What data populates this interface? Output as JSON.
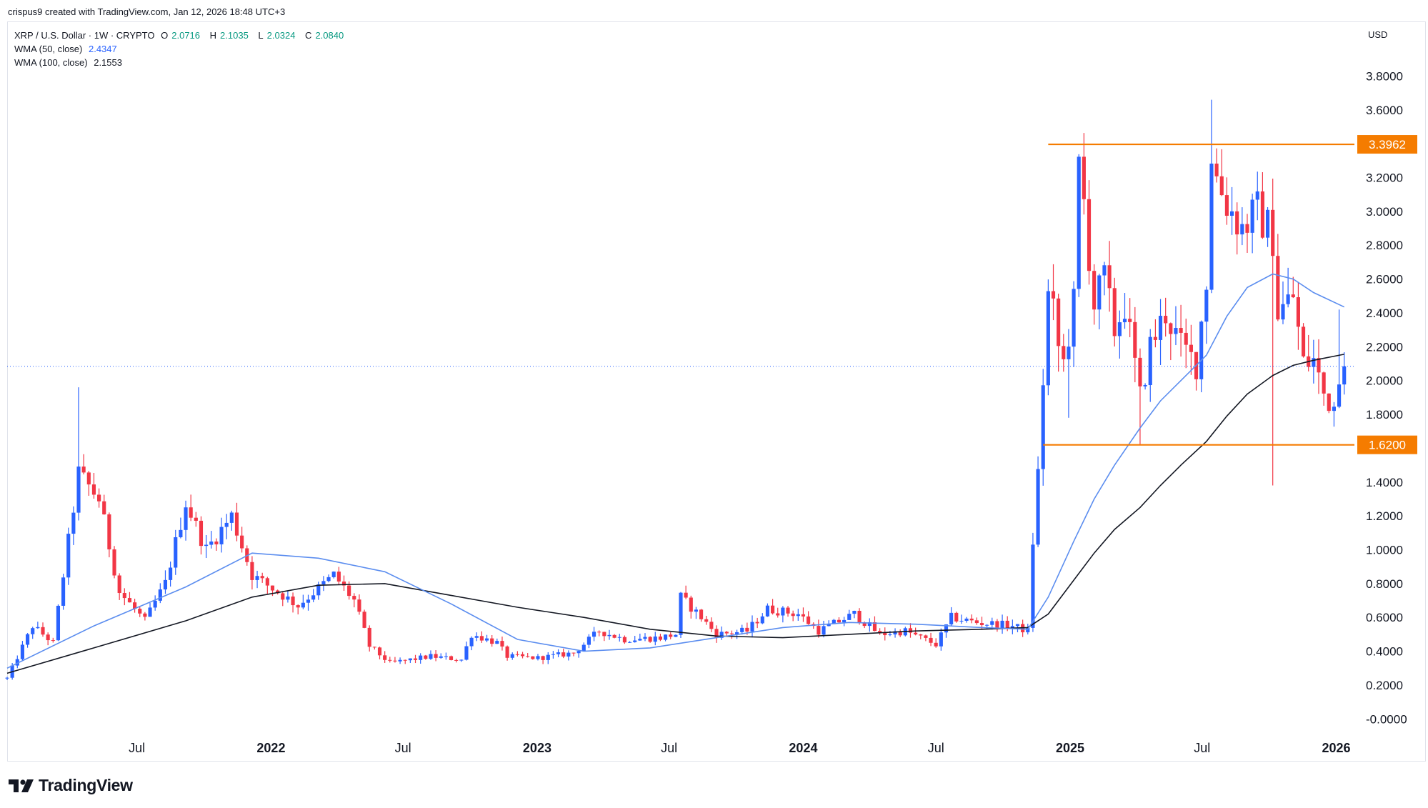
{
  "credit": "crispus9 created with TradingView.com, Jan 12, 2026 18:48 UTC+3",
  "legend": {
    "symbol": "XRP / U.S. Dollar · 1W · CRYPTO",
    "open_label": "O",
    "open": "2.0716",
    "high_label": "H",
    "high": "2.1035",
    "low_label": "L",
    "low": "2.0324",
    "close_label": "C",
    "close": "2.0840",
    "wma50_label": "WMA (50, close)",
    "wma50_value": "2.4347",
    "wma100_label": "WMA (100, close)",
    "wma100_value": "2.1553"
  },
  "brand": {
    "logo_icon": "tradingview-logo-icon",
    "name": "TradingView"
  },
  "colors": {
    "up": "#2962ff",
    "down": "#f23645",
    "wma50": "#5b8def",
    "wma100": "#131722",
    "level": "#f57c00",
    "level_label_bg": "#f57c00",
    "last_price_line": "#2962ff"
  },
  "chart_data": {
    "type": "candlestick",
    "currency_label": "USD",
    "ylim": [
      -0.1,
      3.92
    ],
    "y_ticks": [
      "3.8000",
      "3.6000",
      "3.2000",
      "3.0000",
      "2.8000",
      "2.6000",
      "2.4000",
      "2.2000",
      "2.0000",
      "1.8000",
      "1.4000",
      "1.2000",
      "1.0000",
      "0.8000",
      "0.6000",
      "0.4000",
      "0.2000",
      "-0.0000"
    ],
    "x_ticks": [
      {
        "label": "Jul",
        "date": "2021-07-01",
        "bold": false
      },
      {
        "label": "2022",
        "date": "2022-01-01",
        "bold": true
      },
      {
        "label": "Jul",
        "date": "2022-07-01",
        "bold": false
      },
      {
        "label": "2023",
        "date": "2023-01-01",
        "bold": true
      },
      {
        "label": "Jul",
        "date": "2023-07-01",
        "bold": false
      },
      {
        "label": "2024",
        "date": "2024-01-01",
        "bold": true
      },
      {
        "label": "Jul",
        "date": "2024-07-01",
        "bold": false
      },
      {
        "label": "2025",
        "date": "2025-01-01",
        "bold": true
      },
      {
        "label": "Jul",
        "date": "2025-07-01",
        "bold": false
      },
      {
        "label": "2026",
        "date": "2026-01-01",
        "bold": true
      }
    ],
    "x_range": [
      "2021-01-04",
      "2026-01-26"
    ],
    "levels": [
      {
        "value": "3.3962",
        "from": "2024-12-02",
        "to": "2026-01-26"
      },
      {
        "value": "1.6200",
        "from": "2024-11-25",
        "to": "2026-01-26"
      }
    ],
    "last_close": 2.084,
    "anchors": [
      {
        "date": "2021-01-04",
        "price": 0.24
      },
      {
        "date": "2021-02-08",
        "price": 0.55
      },
      {
        "date": "2021-03-08",
        "price": 0.45
      },
      {
        "date": "2021-04-12",
        "price": 1.45
      },
      {
        "date": "2021-05-10",
        "price": 1.3
      },
      {
        "date": "2021-06-07",
        "price": 0.75
      },
      {
        "date": "2021-07-12",
        "price": 0.58
      },
      {
        "date": "2021-08-09",
        "price": 0.8
      },
      {
        "date": "2021-09-06",
        "price": 1.28
      },
      {
        "date": "2021-10-04",
        "price": 1.0
      },
      {
        "date": "2021-11-08",
        "price": 1.2
      },
      {
        "date": "2021-12-06",
        "price": 0.85
      },
      {
        "date": "2022-01-10",
        "price": 0.75
      },
      {
        "date": "2022-02-07",
        "price": 0.67
      },
      {
        "date": "2022-03-28",
        "price": 0.85
      },
      {
        "date": "2022-04-25",
        "price": 0.7
      },
      {
        "date": "2022-05-16",
        "price": 0.43
      },
      {
        "date": "2022-06-13",
        "price": 0.33
      },
      {
        "date": "2022-08-08",
        "price": 0.37
      },
      {
        "date": "2022-09-19",
        "price": 0.35
      },
      {
        "date": "2022-10-03",
        "price": 0.5
      },
      {
        "date": "2022-11-07",
        "price": 0.45
      },
      {
        "date": "2022-11-21",
        "price": 0.37
      },
      {
        "date": "2023-01-02",
        "price": 0.36
      },
      {
        "date": "2023-02-20",
        "price": 0.39
      },
      {
        "date": "2023-03-27",
        "price": 0.52
      },
      {
        "date": "2023-05-01",
        "price": 0.47
      },
      {
        "date": "2023-06-19",
        "price": 0.48
      },
      {
        "date": "2023-07-10",
        "price": 0.5
      },
      {
        "date": "2023-07-17",
        "price": 0.72
      },
      {
        "date": "2023-08-14",
        "price": 0.6
      },
      {
        "date": "2023-09-04",
        "price": 0.5
      },
      {
        "date": "2023-10-16",
        "price": 0.52
      },
      {
        "date": "2023-11-13",
        "price": 0.65
      },
      {
        "date": "2023-12-25",
        "price": 0.62
      },
      {
        "date": "2024-01-22",
        "price": 0.52
      },
      {
        "date": "2024-03-11",
        "price": 0.62
      },
      {
        "date": "2024-04-15",
        "price": 0.5
      },
      {
        "date": "2024-05-20",
        "price": 0.52
      },
      {
        "date": "2024-07-01",
        "price": 0.44
      },
      {
        "date": "2024-07-22",
        "price": 0.6
      },
      {
        "date": "2024-08-26",
        "price": 0.57
      },
      {
        "date": "2024-10-14",
        "price": 0.55
      },
      {
        "date": "2024-11-04",
        "price": 0.52
      },
      {
        "date": "2024-11-11",
        "price": 1.05
      },
      {
        "date": "2024-11-18",
        "price": 1.45
      },
      {
        "date": "2024-11-25",
        "price": 2.0
      },
      {
        "date": "2024-12-02",
        "price": 2.5
      },
      {
        "date": "2024-12-09",
        "price": 2.4
      },
      {
        "date": "2024-12-16",
        "price": 2.2
      },
      {
        "date": "2024-12-23",
        "price": 2.1
      },
      {
        "date": "2025-01-06",
        "price": 2.45
      },
      {
        "date": "2025-01-13",
        "price": 3.25
      },
      {
        "date": "2025-01-20",
        "price": 3.05
      },
      {
        "date": "2025-02-03",
        "price": 2.45
      },
      {
        "date": "2025-02-17",
        "price": 2.6
      },
      {
        "date": "2025-03-03",
        "price": 2.3
      },
      {
        "date": "2025-03-17",
        "price": 2.45
      },
      {
        "date": "2025-04-07",
        "price": 1.9
      },
      {
        "date": "2025-04-21",
        "price": 2.2
      },
      {
        "date": "2025-05-12",
        "price": 2.4
      },
      {
        "date": "2025-06-02",
        "price": 2.2
      },
      {
        "date": "2025-06-23",
        "price": 2.1
      },
      {
        "date": "2025-07-07",
        "price": 2.6
      },
      {
        "date": "2025-07-14",
        "price": 3.35
      },
      {
        "date": "2025-07-21",
        "price": 3.2
      },
      {
        "date": "2025-08-04",
        "price": 3.05
      },
      {
        "date": "2025-08-25",
        "price": 2.9
      },
      {
        "date": "2025-09-15",
        "price": 3.0
      },
      {
        "date": "2025-10-06",
        "price": 2.85
      },
      {
        "date": "2025-10-13",
        "price": 2.4
      },
      {
        "date": "2025-11-03",
        "price": 2.5
      },
      {
        "date": "2025-11-17",
        "price": 2.1
      },
      {
        "date": "2025-12-01",
        "price": 2.12
      },
      {
        "date": "2025-12-15",
        "price": 1.92
      },
      {
        "date": "2025-12-29",
        "price": 1.85
      },
      {
        "date": "2026-01-05",
        "price": 2.07
      },
      {
        "date": "2026-01-12",
        "price": 2.084
      }
    ],
    "long_wicks": [
      {
        "date": "2021-04-12",
        "high": 1.96
      },
      {
        "date": "2024-12-30",
        "low": 1.78
      },
      {
        "date": "2025-04-07",
        "low": 1.62
      },
      {
        "date": "2025-07-14",
        "high": 3.66
      },
      {
        "date": "2025-10-06",
        "low": 1.38
      },
      {
        "date": "2026-01-05",
        "high": 2.42
      }
    ],
    "wma50": [
      {
        "date": "2021-01-04",
        "price": 0.3
      },
      {
        "date": "2021-05-03",
        "price": 0.55
      },
      {
        "date": "2021-09-06",
        "price": 0.78
      },
      {
        "date": "2021-12-06",
        "price": 0.98
      },
      {
        "date": "2022-03-07",
        "price": 0.95
      },
      {
        "date": "2022-06-06",
        "price": 0.87
      },
      {
        "date": "2022-09-05",
        "price": 0.68
      },
      {
        "date": "2022-12-05",
        "price": 0.47
      },
      {
        "date": "2023-03-06",
        "price": 0.4
      },
      {
        "date": "2023-06-05",
        "price": 0.42
      },
      {
        "date": "2023-09-04",
        "price": 0.48
      },
      {
        "date": "2023-12-04",
        "price": 0.54
      },
      {
        "date": "2024-03-04",
        "price": 0.57
      },
      {
        "date": "2024-06-03",
        "price": 0.56
      },
      {
        "date": "2024-09-02",
        "price": 0.54
      },
      {
        "date": "2024-11-04",
        "price": 0.53
      },
      {
        "date": "2024-12-02",
        "price": 0.72
      },
      {
        "date": "2025-01-06",
        "price": 1.05
      },
      {
        "date": "2025-02-03",
        "price": 1.3
      },
      {
        "date": "2025-03-03",
        "price": 1.5
      },
      {
        "date": "2025-04-07",
        "price": 1.72
      },
      {
        "date": "2025-05-05",
        "price": 1.88
      },
      {
        "date": "2025-06-02",
        "price": 2.0
      },
      {
        "date": "2025-07-07",
        "price": 2.15
      },
      {
        "date": "2025-08-04",
        "price": 2.38
      },
      {
        "date": "2025-09-01",
        "price": 2.55
      },
      {
        "date": "2025-10-06",
        "price": 2.63
      },
      {
        "date": "2025-11-03",
        "price": 2.6
      },
      {
        "date": "2025-12-01",
        "price": 2.52
      },
      {
        "date": "2026-01-12",
        "price": 2.4347
      }
    ],
    "wma100": [
      {
        "date": "2021-01-04",
        "price": 0.27
      },
      {
        "date": "2021-05-03",
        "price": 0.42
      },
      {
        "date": "2021-09-06",
        "price": 0.58
      },
      {
        "date": "2021-12-06",
        "price": 0.72
      },
      {
        "date": "2022-03-07",
        "price": 0.79
      },
      {
        "date": "2022-06-06",
        "price": 0.8
      },
      {
        "date": "2022-09-05",
        "price": 0.73
      },
      {
        "date": "2022-12-05",
        "price": 0.66
      },
      {
        "date": "2023-03-06",
        "price": 0.6
      },
      {
        "date": "2023-06-05",
        "price": 0.53
      },
      {
        "date": "2023-09-04",
        "price": 0.49
      },
      {
        "date": "2023-12-04",
        "price": 0.48
      },
      {
        "date": "2024-03-04",
        "price": 0.5
      },
      {
        "date": "2024-06-03",
        "price": 0.52
      },
      {
        "date": "2024-09-02",
        "price": 0.53
      },
      {
        "date": "2024-11-04",
        "price": 0.54
      },
      {
        "date": "2024-12-02",
        "price": 0.62
      },
      {
        "date": "2025-01-06",
        "price": 0.82
      },
      {
        "date": "2025-02-03",
        "price": 0.98
      },
      {
        "date": "2025-03-03",
        "price": 1.12
      },
      {
        "date": "2025-04-07",
        "price": 1.25
      },
      {
        "date": "2025-05-05",
        "price": 1.38
      },
      {
        "date": "2025-06-02",
        "price": 1.5
      },
      {
        "date": "2025-07-07",
        "price": 1.64
      },
      {
        "date": "2025-08-04",
        "price": 1.79
      },
      {
        "date": "2025-09-01",
        "price": 1.92
      },
      {
        "date": "2025-10-06",
        "price": 2.03
      },
      {
        "date": "2025-11-03",
        "price": 2.09
      },
      {
        "date": "2025-12-01",
        "price": 2.12
      },
      {
        "date": "2026-01-12",
        "price": 2.1553
      }
    ]
  }
}
